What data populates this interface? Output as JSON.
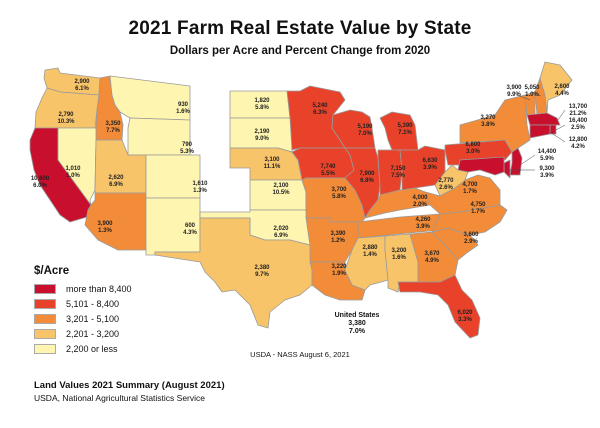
{
  "title": "2021 Farm Real Estate Value by State",
  "subtitle": "Dollars per Acre and Percent Change from 2020",
  "legend": {
    "title": "$/Acre",
    "items": [
      {
        "label": "more than 8,400",
        "color": "#c8102e"
      },
      {
        "label": "5,101 - 8,400",
        "color": "#e8432a"
      },
      {
        "label": "3,201 - 5,100",
        "color": "#f28c38"
      },
      {
        "label": "2,201 - 3,200",
        "color": "#f7c46a"
      },
      {
        "label": "2,200 or less",
        "color": "#fdf5b0"
      }
    ]
  },
  "states": [
    {
      "abbr": "WA",
      "value": "2,900",
      "change": "6.1%",
      "color": "#f7c46a"
    },
    {
      "abbr": "OR",
      "value": "2,790",
      "change": "10.3%",
      "color": "#f7c46a"
    },
    {
      "abbr": "CA",
      "value": "10,600",
      "change": "6.0%",
      "color": "#c8102e"
    },
    {
      "abbr": "ID",
      "value": "3,350",
      "change": "7.7%",
      "color": "#f28c38"
    },
    {
      "abbr": "NV",
      "value": "1,010",
      "change": "1.0%",
      "color": "#fdf5b0"
    },
    {
      "abbr": "MT",
      "value": "930",
      "change": "1.6%",
      "color": "#fdf5b0"
    },
    {
      "abbr": "WY",
      "value": "790",
      "change": "5.3%",
      "color": "#fdf5b0"
    },
    {
      "abbr": "UT",
      "value": "2,620",
      "change": "6.9%",
      "color": "#f7c46a"
    },
    {
      "abbr": "AZ",
      "value": "3,900",
      "change": "1.3%",
      "color": "#f28c38"
    },
    {
      "abbr": "CO",
      "value": "1,610",
      "change": "1.3%",
      "color": "#fdf5b0"
    },
    {
      "abbr": "NM",
      "value": "600",
      "change": "4.3%",
      "color": "#fdf5b0"
    },
    {
      "abbr": "ND",
      "value": "1,820",
      "change": "5.8%",
      "color": "#fdf5b0"
    },
    {
      "abbr": "SD",
      "value": "2,190",
      "change": "9.0%",
      "color": "#fdf5b0"
    },
    {
      "abbr": "NE",
      "value": "3,100",
      "change": "11.1%",
      "color": "#f7c46a"
    },
    {
      "abbr": "KS",
      "value": "2,100",
      "change": "10.5%",
      "color": "#fdf5b0"
    },
    {
      "abbr": "OK",
      "value": "2,020",
      "change": "6.9%",
      "color": "#fdf5b0"
    },
    {
      "abbr": "TX",
      "value": "2,380",
      "change": "9.7%",
      "color": "#f7c46a"
    },
    {
      "abbr": "MN",
      "value": "5,240",
      "change": "6.3%",
      "color": "#e8432a"
    },
    {
      "abbr": "IA",
      "value": "7,740",
      "change": "5.5%",
      "color": "#e8432a"
    },
    {
      "abbr": "MO",
      "value": "3,700",
      "change": "5.8%",
      "color": "#f28c38"
    },
    {
      "abbr": "AR",
      "value": "3,390",
      "change": "1.2%",
      "color": "#f28c38"
    },
    {
      "abbr": "LA",
      "value": "3,220",
      "change": "1.9%",
      "color": "#f28c38"
    },
    {
      "abbr": "WI",
      "value": "5,190",
      "change": "7.0%",
      "color": "#e8432a"
    },
    {
      "abbr": "IL",
      "value": "7,900",
      "change": "6.8%",
      "color": "#e8432a"
    },
    {
      "abbr": "MI",
      "value": "5,390",
      "change": "7.1%",
      "color": "#e8432a"
    },
    {
      "abbr": "IN",
      "value": "7,150",
      "change": "7.5%",
      "color": "#e8432a"
    },
    {
      "abbr": "OH",
      "value": "6,630",
      "change": "3.9%",
      "color": "#e8432a"
    },
    {
      "abbr": "KY",
      "value": "4,000",
      "change": "2.0%",
      "color": "#f28c38"
    },
    {
      "abbr": "TN",
      "value": "4,260",
      "change": "3.9%",
      "color": "#f28c38"
    },
    {
      "abbr": "MS",
      "value": "2,880",
      "change": "1.4%",
      "color": "#f7c46a"
    },
    {
      "abbr": "AL",
      "value": "3,200",
      "change": "1.6%",
      "color": "#f7c46a"
    },
    {
      "abbr": "GA",
      "value": "3,670",
      "change": "4.9%",
      "color": "#f28c38"
    },
    {
      "abbr": "FL",
      "value": "6,020",
      "change": "3.3%",
      "color": "#e8432a"
    },
    {
      "abbr": "SC",
      "value": "3,600",
      "change": "2.9%",
      "color": "#f28c38"
    },
    {
      "abbr": "NC",
      "value": "4,750",
      "change": "1.7%",
      "color": "#f28c38"
    },
    {
      "abbr": "VA",
      "value": "4,700",
      "change": "1.7%",
      "color": "#f28c38"
    },
    {
      "abbr": "WV",
      "value": "2,770",
      "change": "2.6%",
      "color": "#f7c46a"
    },
    {
      "abbr": "PA",
      "value": "6,800",
      "change": "3.0%",
      "color": "#e8432a"
    },
    {
      "abbr": "NY",
      "value": "3,270",
      "change": "3.8%",
      "color": "#f28c38"
    },
    {
      "abbr": "VT",
      "value": "3,900",
      "change": "9.9%",
      "color": "#f28c38"
    },
    {
      "abbr": "NH",
      "value": "5,050",
      "change": "1.0%",
      "color": "#f28c38"
    },
    {
      "abbr": "ME",
      "value": "2,600",
      "change": "4.4%",
      "color": "#f7c46a"
    },
    {
      "abbr": "MA",
      "value": "13,700",
      "change": "21.2%",
      "color": "#c8102e"
    },
    {
      "abbr": "RI",
      "value": "16,400",
      "change": "2.5%",
      "color": "#c8102e"
    },
    {
      "abbr": "CT",
      "value": "12,800",
      "change": "4.2%",
      "color": "#c8102e"
    },
    {
      "abbr": "NJ",
      "value": "14,400",
      "change": "5.9%",
      "color": "#c8102e"
    },
    {
      "abbr": "DE",
      "value": "9,300",
      "change": "3.9%",
      "color": "#c8102e"
    },
    {
      "abbr": "MD",
      "value": "",
      "change": "",
      "color": "#c8102e"
    }
  ],
  "us_total": {
    "name": "United States",
    "value": "3,380",
    "change": "7.0%"
  },
  "source": "USDA - NASS August 6, 2021",
  "footer": {
    "line1": "Land Values 2021 Summary (August 2021)",
    "line2": "USDA, National Agricultural Statistics Service"
  }
}
